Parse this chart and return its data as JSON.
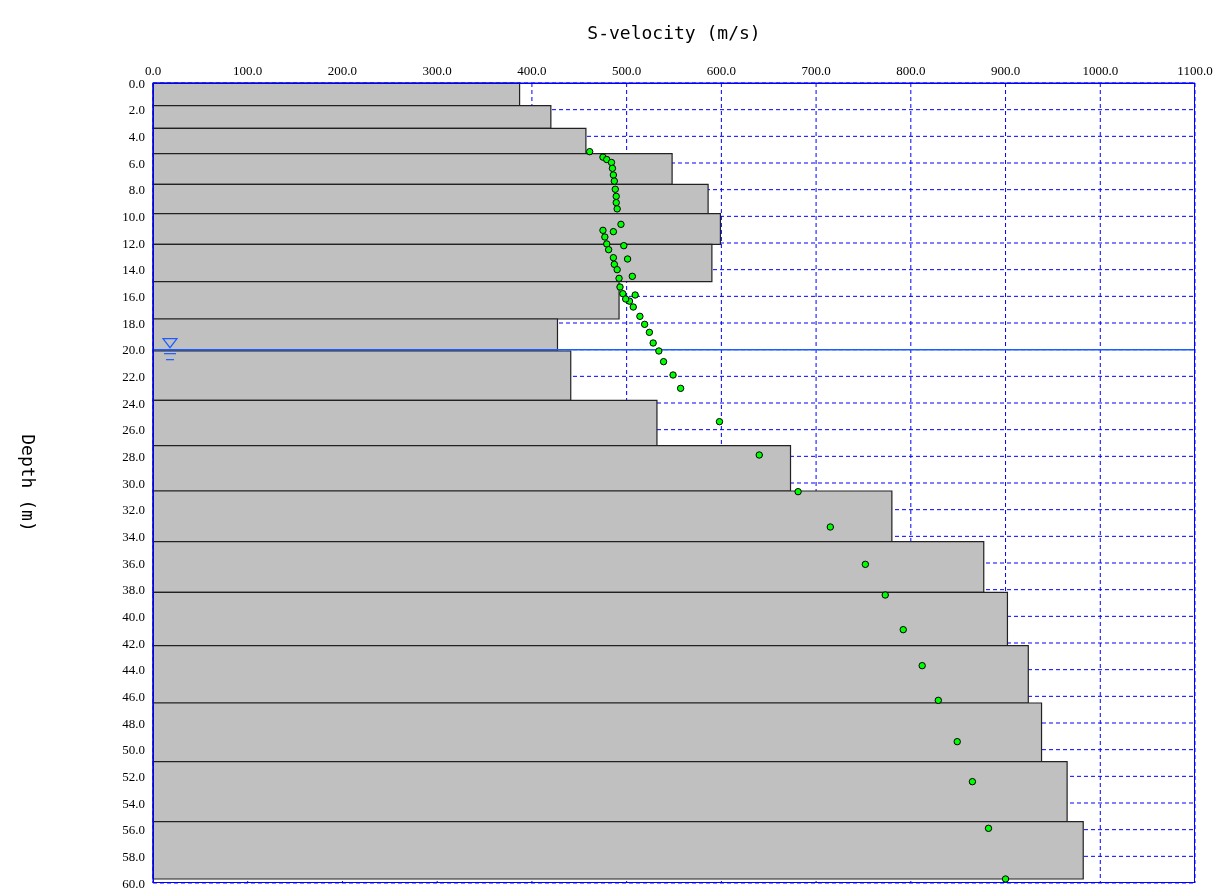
{
  "chart_data": {
    "type": "histogram",
    "orientation": "horizontal",
    "xlabel": "S-velocity (m/s)",
    "ylabel": "Depth (m)",
    "xlim": [
      0,
      1100
    ],
    "xticks": [
      {
        "value": 0,
        "label": "0.0"
      },
      {
        "value": 100,
        "label": "100.0"
      },
      {
        "value": 200,
        "label": "200.0"
      },
      {
        "value": 300,
        "label": "300.0"
      },
      {
        "value": 400,
        "label": "400.0"
      },
      {
        "value": 500,
        "label": "500.0"
      },
      {
        "value": 600,
        "label": "600.0"
      },
      {
        "value": 700,
        "label": "700.0"
      },
      {
        "value": 800,
        "label": "800.0"
      },
      {
        "value": 900,
        "label": "900.0"
      },
      {
        "value": 1000,
        "label": "1000.0"
      },
      {
        "value": 1100,
        "label": "1100.0"
      }
    ],
    "ylim": [
      60,
      0
    ],
    "yticks": [
      {
        "value": 0,
        "label": "0.0"
      },
      {
        "value": 2,
        "label": "2.0"
      },
      {
        "value": 4,
        "label": "4.0"
      },
      {
        "value": 6,
        "label": "6.0"
      },
      {
        "value": 8,
        "label": "8.0"
      },
      {
        "value": 10,
        "label": "10.0"
      },
      {
        "value": 12,
        "label": "12.0"
      },
      {
        "value": 14,
        "label": "14.0"
      },
      {
        "value": 16,
        "label": "16.0"
      },
      {
        "value": 18,
        "label": "18.0"
      },
      {
        "value": 20,
        "label": "20.0"
      },
      {
        "value": 22,
        "label": "22.0"
      },
      {
        "value": 24,
        "label": "24.0"
      },
      {
        "value": 26,
        "label": "26.0"
      },
      {
        "value": 28,
        "label": "28.0"
      },
      {
        "value": 30,
        "label": "30.0"
      },
      {
        "value": 32,
        "label": "32.0"
      },
      {
        "value": 34,
        "label": "34.0"
      },
      {
        "value": 36,
        "label": "36.0"
      },
      {
        "value": 38,
        "label": "38.0"
      },
      {
        "value": 40,
        "label": "40.0"
      },
      {
        "value": 42,
        "label": "42.0"
      },
      {
        "value": 44,
        "label": "44.0"
      },
      {
        "value": 46,
        "label": "46.0"
      },
      {
        "value": 48,
        "label": "48.0"
      },
      {
        "value": 50,
        "label": "50.0"
      },
      {
        "value": 52,
        "label": "52.0"
      },
      {
        "value": 54,
        "label": "54.0"
      },
      {
        "value": 56,
        "label": "56.0"
      },
      {
        "value": 58,
        "label": "58.0"
      },
      {
        "value": 60,
        "label": "60.0"
      }
    ],
    "grid": true,
    "ref_lines": [
      {
        "axis": "y",
        "value": 20,
        "color": "#1a5cff"
      }
    ],
    "series": [
      {
        "color": "#c0c0c0",
        "bins": [
          0,
          1.7,
          3.4,
          5.3,
          7.6,
          9.8,
          12.1,
          14.9,
          17.7,
          20.1,
          23.8,
          27.2,
          30.6,
          34.4,
          38.2,
          42.2,
          46.5,
          50.9,
          55.4,
          59.7
        ],
        "values": [
          387,
          420,
          457,
          548,
          586,
          599,
          590,
          492,
          427,
          441,
          532,
          673,
          780,
          877,
          902,
          924,
          938,
          965,
          982
        ]
      },
      {
        "type": "scatter",
        "color": "#00ff00",
        "x": [
          5.15,
          5.56,
          5.74,
          5.96,
          6.4,
          6.9,
          7.36,
          7.97,
          8.5,
          8.97,
          9.44,
          10.6,
          11.15,
          11.05,
          11.55,
          12.07,
          12.5,
          12.2,
          13.2,
          13.1,
          13.6,
          14.0,
          14.5,
          14.65,
          15.3,
          15.8,
          15.9,
          16.36,
          16.8,
          16.2,
          17.5,
          18.1,
          18.7,
          19.5,
          20.1,
          20.9,
          21.9,
          22.9,
          25.4,
          27.9,
          30.65,
          33.3,
          36.1,
          38.4,
          41.0,
          43.7,
          46.3,
          49.4,
          52.4,
          55.9,
          59.7
        ],
        "values": [
          461,
          475,
          479,
          484,
          485,
          486,
          487,
          488,
          489,
          489,
          490,
          494,
          486,
          475,
          477,
          479,
          481,
          497,
          501,
          486,
          487,
          490,
          506,
          492,
          493,
          496,
          509,
          503,
          507,
          499,
          514,
          519,
          524,
          528,
          534,
          539,
          549,
          557,
          598,
          640,
          681,
          715,
          752,
          773,
          792,
          812,
          829,
          849,
          865,
          882,
          900
        ]
      }
    ]
  }
}
